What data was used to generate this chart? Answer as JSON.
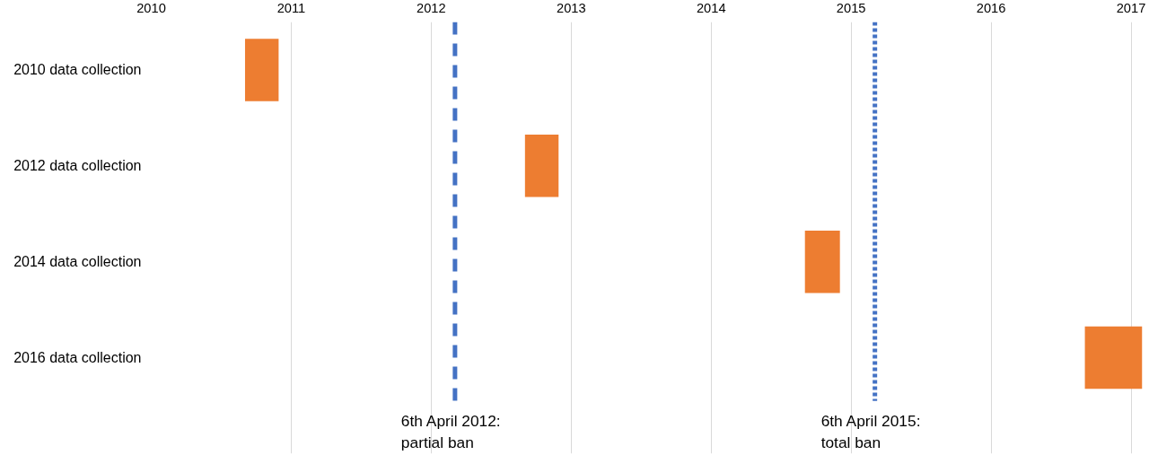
{
  "chart_data": {
    "type": "bar",
    "orientation": "horizontal",
    "categories": [
      "2010 data collection",
      "2012 data collection",
      "2014 data collection",
      "2016 data collection"
    ],
    "base": [
      2010.67,
      2012.67,
      2014.67,
      2016.67
    ],
    "values": [
      0.24,
      0.24,
      0.25,
      0.41
    ],
    "color": "#ed7d31",
    "xlim": [
      2010,
      2017.08
    ],
    "xticks": [
      2010,
      2011,
      2012,
      2013,
      2014,
      2015,
      2016,
      2017
    ],
    "grid": "x",
    "ref_lines": [
      {
        "axis": "x",
        "value": 2012.17,
        "label": "6th April 2012:\npartial ban",
        "color": "#4472c4",
        "line_style": "dashed"
      },
      {
        "axis": "x",
        "value": 2015.17,
        "label": "6th April 2015:\ntotal ban",
        "color": "#4472c4",
        "line_style": "dotted"
      }
    ]
  }
}
